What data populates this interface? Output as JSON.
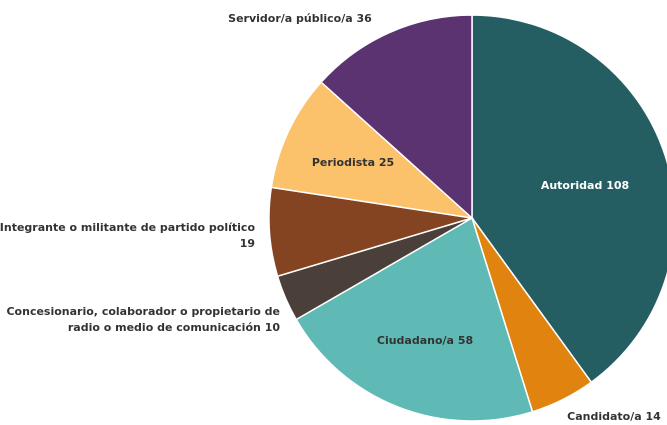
{
  "chart_data": {
    "type": "pie",
    "categories": [
      "Autoridad",
      "Candidato/a",
      "Ciudadano/a",
      "Concesionario, colaborador o propietario de radio o medio de comunicación",
      "Integrante o militante de partido político",
      "Periodista",
      "Servidor/a público/a"
    ],
    "values": [
      108,
      14,
      58,
      10,
      19,
      25,
      36
    ],
    "colors": [
      "#245e63",
      "#e0830f",
      "#5fb9b5",
      "#4a4039",
      "#844421",
      "#fbc16b",
      "#5a3370"
    ]
  }
}
